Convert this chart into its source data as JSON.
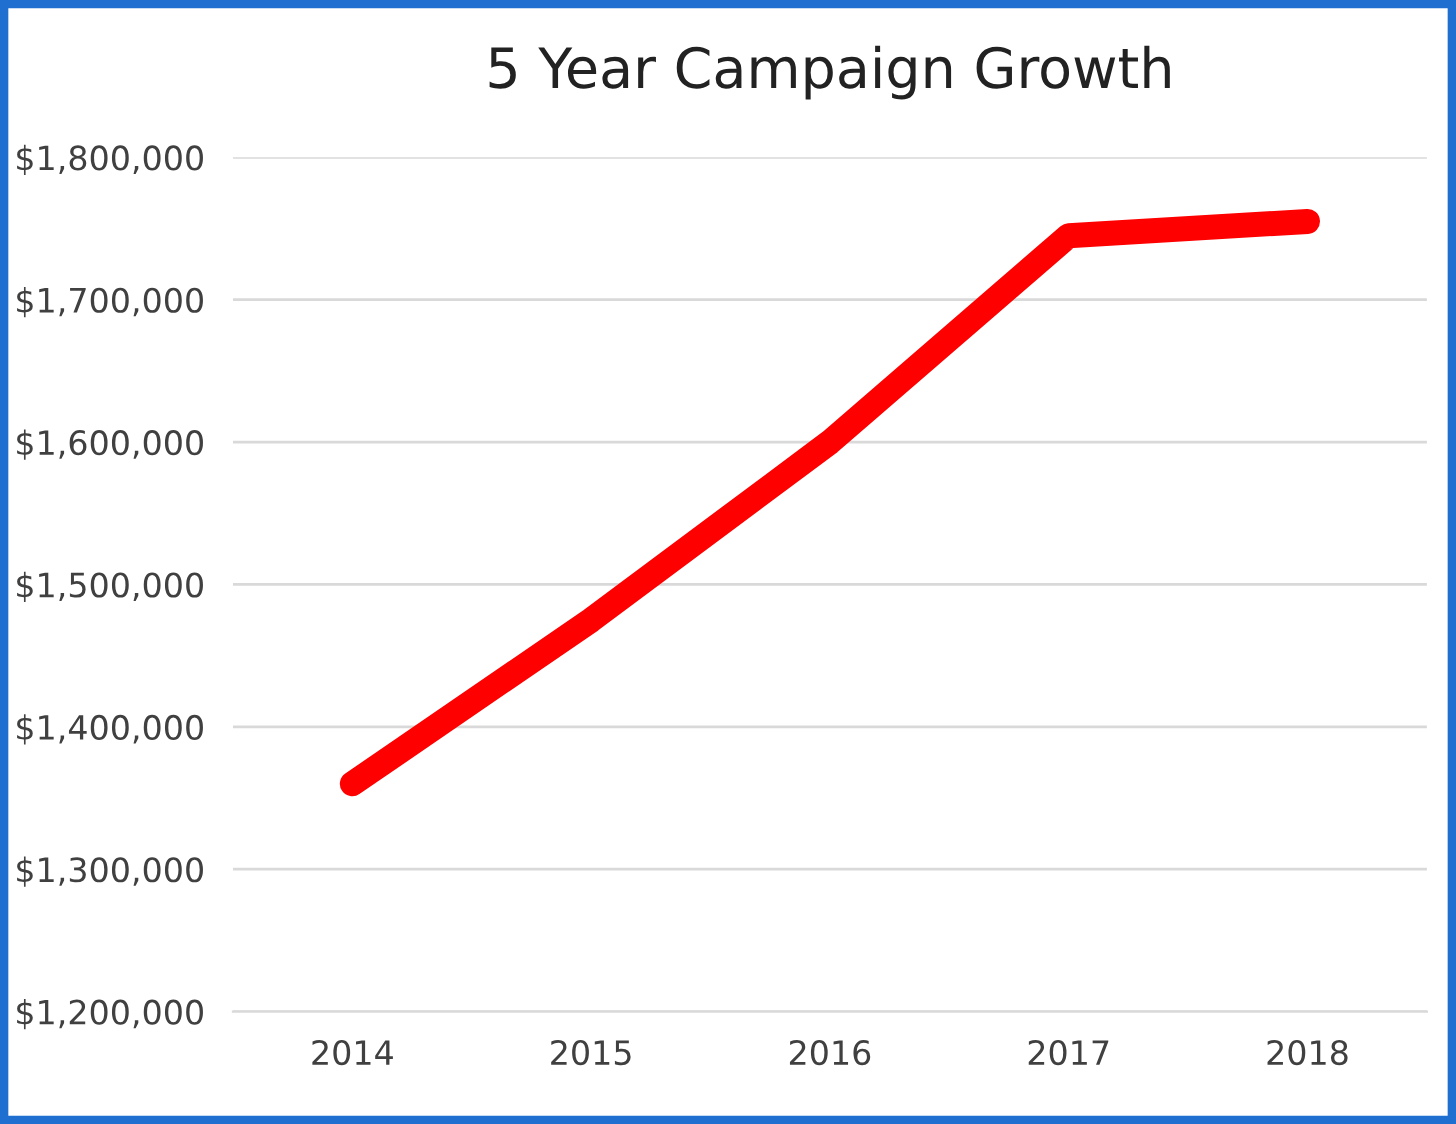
{
  "chart_data": {
    "type": "line",
    "title": "5 Year Campaign Growth",
    "categories": [
      "2014",
      "2015",
      "2016",
      "2017",
      "2018"
    ],
    "series": [
      {
        "color": "#ff0000",
        "values": [
          1360000,
          1475000,
          1600000,
          1745000,
          1755000
        ]
      }
    ],
    "ylim": [
      1200000,
      1800000
    ],
    "yticks": [
      {
        "value": 1200000,
        "label": "$1,200,000"
      },
      {
        "value": 1300000,
        "label": "$1,300,000"
      },
      {
        "value": 1400000,
        "label": "$1,400,000"
      },
      {
        "value": 1500000,
        "label": "$1,500,000"
      },
      {
        "value": 1600000,
        "label": "$1,600,000"
      },
      {
        "value": 1700000,
        "label": "$1,700,000"
      },
      {
        "value": 1800000,
        "label": "$1,800,000"
      }
    ],
    "grid": "y",
    "legend": false,
    "marker": "none",
    "line_style": "solid"
  }
}
